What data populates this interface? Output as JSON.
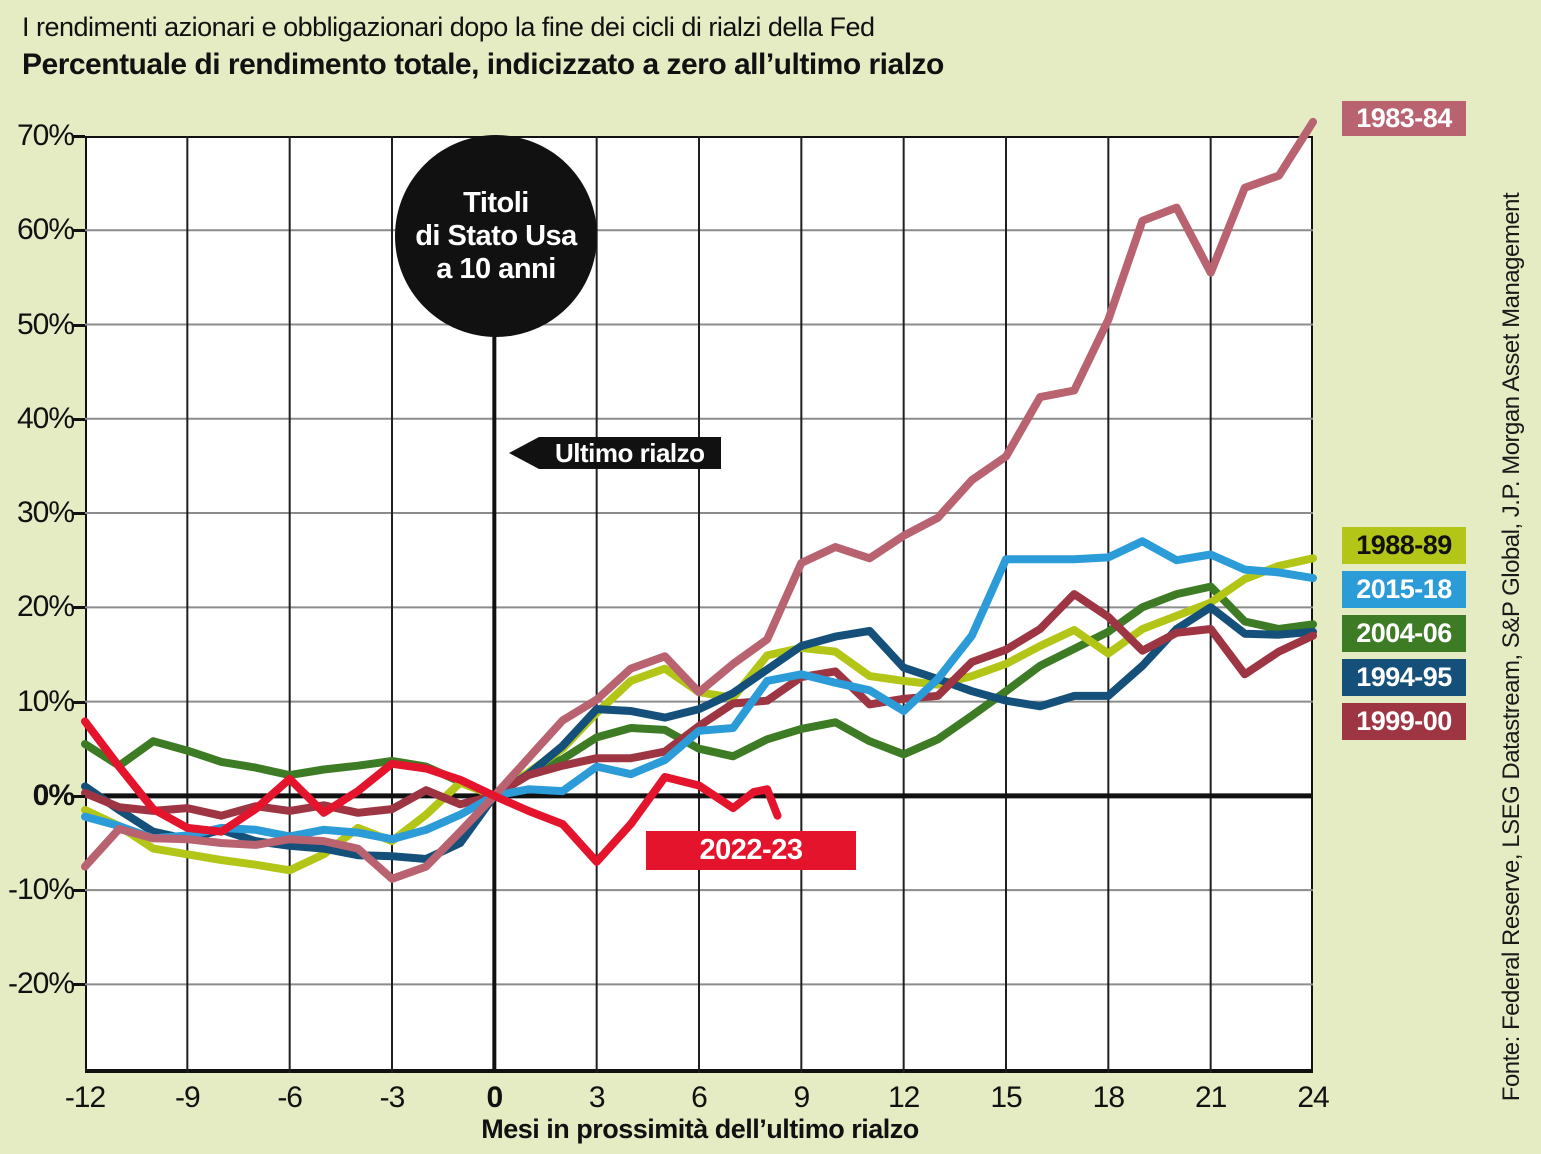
{
  "kicker": "I rendimenti azionari e obbligazionari dopo la fine dei cicli di rialzi della Fed",
  "title": "Percentuale di rendimento totale, indicizzato a zero all’ultimo rialzo",
  "source": "Fonte: Federal Reserve, LSEG Datastream, S&P Global, J.P. Morgan Asset Management",
  "colors": {
    "background": "#e5ecc4",
    "plot_background": "#ffffff",
    "grid_horizontal": "#8c8c8c",
    "grid_vertical": "#1f1f1f",
    "axis_black": "#111111"
  },
  "annotations": {
    "circle_lines": [
      "Titoli",
      "di Stato Usa",
      "a 10 anni"
    ],
    "last_hike_label": "Ultimo rialzo",
    "inline_series_label": "2022-23",
    "inline_series_color": "#e5142d"
  },
  "axes": {
    "xlabel": "Mesi in prossimità dell’ultimo rialzo",
    "x_ticks": [
      -12,
      -9,
      -6,
      -3,
      0,
      3,
      6,
      9,
      12,
      15,
      18,
      21,
      24
    ],
    "x_range": [
      -12,
      24
    ],
    "y_ticks": [
      70,
      60,
      50,
      40,
      30,
      20,
      10,
      0,
      -10,
      -20
    ],
    "y_tick_suffix": "%",
    "y_range": [
      -29.4,
      70
    ],
    "grid": true
  },
  "legend": {
    "top_item": {
      "label": "1983-84",
      "color": "#b96270",
      "text_color": "#ffffff"
    },
    "stack": [
      {
        "label": "1988-89",
        "color": "#b3c618",
        "text_color": "#111111"
      },
      {
        "label": "2015-18",
        "color": "#2b9cd8",
        "text_color": "#ffffff"
      },
      {
        "label": "2004-06",
        "color": "#3d7b25",
        "text_color": "#ffffff"
      },
      {
        "label": "1994-95",
        "color": "#14507a",
        "text_color": "#ffffff"
      },
      {
        "label": "1999-00",
        "color": "#9e3543",
        "text_color": "#ffffff"
      }
    ]
  },
  "chart_data": {
    "type": "line",
    "title": "Percentuale di rendimento totale, indicizzato a zero all’ultimo rialzo",
    "xlabel": "Mesi in prossimità dell’ultimo rialzo",
    "ylabel": "%",
    "xlim": [
      -12,
      24
    ],
    "ylim": [
      -29.4,
      70
    ],
    "grid": true,
    "legend_position": "right",
    "series": [
      {
        "name": "2004-06",
        "color": "#3d7b25",
        "points": [
          [
            -12,
            5.5
          ],
          [
            -11,
            3.2
          ],
          [
            -10,
            5.8
          ],
          [
            -9,
            4.8
          ],
          [
            -8,
            3.6
          ],
          [
            -7,
            3.0
          ],
          [
            -6,
            2.2
          ],
          [
            -5,
            2.8
          ],
          [
            -4,
            3.2
          ],
          [
            -3,
            3.7
          ],
          [
            -2,
            3.1
          ],
          [
            -1,
            1.5
          ],
          [
            0,
            0
          ],
          [
            1,
            2.3
          ],
          [
            2,
            3.9
          ],
          [
            3,
            6.2
          ],
          [
            4,
            7.2
          ],
          [
            5,
            7.0
          ],
          [
            6,
            5.0
          ],
          [
            7,
            4.2
          ],
          [
            8,
            6.0
          ],
          [
            9,
            7.1
          ],
          [
            10,
            7.8
          ],
          [
            11,
            5.8
          ],
          [
            12,
            4.4
          ],
          [
            13,
            6.0
          ],
          [
            14,
            8.5
          ],
          [
            15,
            11.1
          ],
          [
            16,
            13.8
          ],
          [
            17,
            15.6
          ],
          [
            18,
            17.4
          ],
          [
            19,
            20.0
          ],
          [
            20,
            21.4
          ],
          [
            21,
            22.2
          ],
          [
            22,
            18.5
          ],
          [
            23,
            17.7
          ],
          [
            24,
            18.2
          ]
        ]
      },
      {
        "name": "1988-89",
        "color": "#b3c618",
        "points": [
          [
            -12,
            -1.5
          ],
          [
            -11,
            -3.2
          ],
          [
            -10,
            -5.6
          ],
          [
            -9,
            -6.2
          ],
          [
            -8,
            -6.8
          ],
          [
            -7,
            -7.3
          ],
          [
            -6,
            -7.9
          ],
          [
            -5,
            -6.2
          ],
          [
            -4,
            -3.4
          ],
          [
            -3,
            -4.8
          ],
          [
            -2,
            -2.0
          ],
          [
            -1,
            1.4
          ],
          [
            0,
            0
          ],
          [
            1,
            2.5
          ],
          [
            2,
            5.0
          ],
          [
            3,
            8.8
          ],
          [
            4,
            12.2
          ],
          [
            5,
            13.5
          ],
          [
            6,
            11.0
          ],
          [
            7,
            10.4
          ],
          [
            8,
            14.9
          ],
          [
            9,
            15.7
          ],
          [
            10,
            15.3
          ],
          [
            11,
            12.7
          ],
          [
            12,
            12.2
          ],
          [
            13,
            11.8
          ],
          [
            14,
            12.7
          ],
          [
            15,
            14.0
          ],
          [
            16,
            15.9
          ],
          [
            17,
            17.6
          ],
          [
            18,
            15.1
          ],
          [
            19,
            17.7
          ],
          [
            20,
            19.1
          ],
          [
            21,
            20.5
          ],
          [
            22,
            23.0
          ],
          [
            23,
            24.4
          ],
          [
            24,
            25.2
          ]
        ]
      },
      {
        "name": "1994-95",
        "color": "#14507a",
        "points": [
          [
            -12,
            1.0
          ],
          [
            -11,
            -1.5
          ],
          [
            -10,
            -3.8
          ],
          [
            -9,
            -4.6
          ],
          [
            -8,
            -3.6
          ],
          [
            -7,
            -4.8
          ],
          [
            -6,
            -5.3
          ],
          [
            -5,
            -5.6
          ],
          [
            -4,
            -6.3
          ],
          [
            -3,
            -6.4
          ],
          [
            -2,
            -6.7
          ],
          [
            -1,
            -5.0
          ],
          [
            0,
            0
          ],
          [
            1,
            2.3
          ],
          [
            2,
            5.3
          ],
          [
            3,
            9.2
          ],
          [
            4,
            9.0
          ],
          [
            5,
            8.3
          ],
          [
            6,
            9.2
          ],
          [
            7,
            10.9
          ],
          [
            8,
            13.4
          ],
          [
            9,
            15.9
          ],
          [
            10,
            16.9
          ],
          [
            11,
            17.5
          ],
          [
            12,
            13.6
          ],
          [
            13,
            12.4
          ],
          [
            14,
            11.1
          ],
          [
            15,
            10.1
          ],
          [
            16,
            9.5
          ],
          [
            17,
            10.6
          ],
          [
            18,
            10.6
          ],
          [
            19,
            13.8
          ],
          [
            20,
            17.7
          ],
          [
            21,
            20.0
          ],
          [
            22,
            17.2
          ],
          [
            23,
            17.1
          ],
          [
            24,
            17.4
          ]
        ]
      },
      {
        "name": "1999-00",
        "color": "#9e3543",
        "points": [
          [
            -12,
            0.3
          ],
          [
            -11,
            -1.2
          ],
          [
            -10,
            -1.6
          ],
          [
            -9,
            -1.3
          ],
          [
            -8,
            -2.1
          ],
          [
            -7,
            -1.1
          ],
          [
            -6,
            -1.6
          ],
          [
            -5,
            -1.0
          ],
          [
            -4,
            -1.8
          ],
          [
            -3,
            -1.4
          ],
          [
            -2,
            0.6
          ],
          [
            -1,
            -0.9
          ],
          [
            0,
            0
          ],
          [
            1,
            2.2
          ],
          [
            2,
            3.2
          ],
          [
            3,
            4.0
          ],
          [
            4,
            4.0
          ],
          [
            5,
            4.7
          ],
          [
            6,
            7.4
          ],
          [
            7,
            9.8
          ],
          [
            8,
            10.1
          ],
          [
            9,
            12.6
          ],
          [
            10,
            13.2
          ],
          [
            11,
            9.7
          ],
          [
            12,
            10.3
          ],
          [
            13,
            10.6
          ],
          [
            14,
            14.2
          ],
          [
            15,
            15.5
          ],
          [
            16,
            17.7
          ],
          [
            17,
            21.4
          ],
          [
            18,
            19.0
          ],
          [
            19,
            15.4
          ],
          [
            20,
            17.3
          ],
          [
            21,
            17.7
          ],
          [
            22,
            12.9
          ],
          [
            23,
            15.3
          ],
          [
            24,
            17.0
          ]
        ]
      },
      {
        "name": "2015-18",
        "color": "#2b9cd8",
        "points": [
          [
            -12,
            -2.2
          ],
          [
            -11,
            -3.2
          ],
          [
            -10,
            -4.5
          ],
          [
            -9,
            -4.2
          ],
          [
            -8,
            -3.4
          ],
          [
            -7,
            -3.6
          ],
          [
            -6,
            -4.3
          ],
          [
            -5,
            -3.6
          ],
          [
            -4,
            -3.9
          ],
          [
            -3,
            -4.6
          ],
          [
            -2,
            -3.6
          ],
          [
            -1,
            -2.0
          ],
          [
            0,
            0
          ],
          [
            1,
            0.7
          ],
          [
            2,
            0.5
          ],
          [
            3,
            3.1
          ],
          [
            4,
            2.3
          ],
          [
            5,
            3.8
          ],
          [
            6,
            6.9
          ],
          [
            7,
            7.2
          ],
          [
            8,
            12.2
          ],
          [
            9,
            12.9
          ],
          [
            10,
            12.0
          ],
          [
            11,
            11.2
          ],
          [
            12,
            9.0
          ],
          [
            13,
            12.4
          ],
          [
            14,
            17.0
          ],
          [
            15,
            25.1
          ],
          [
            16,
            25.1
          ],
          [
            17,
            25.1
          ],
          [
            18,
            25.3
          ],
          [
            19,
            27.0
          ],
          [
            20,
            25.0
          ],
          [
            21,
            25.6
          ],
          [
            22,
            24.0
          ],
          [
            23,
            23.7
          ],
          [
            24,
            23.1
          ]
        ]
      },
      {
        "name": "1983-84",
        "color": "#b96270",
        "points": [
          [
            -12,
            -7.5
          ],
          [
            -11,
            -3.5
          ],
          [
            -10,
            -4.5
          ],
          [
            -9,
            -4.6
          ],
          [
            -8,
            -5.0
          ],
          [
            -7,
            -5.2
          ],
          [
            -6,
            -4.6
          ],
          [
            -5,
            -4.8
          ],
          [
            -4,
            -5.6
          ],
          [
            -3,
            -8.8
          ],
          [
            -2,
            -7.5
          ],
          [
            -1,
            -3.8
          ],
          [
            0,
            0
          ],
          [
            1,
            4.0
          ],
          [
            2,
            8.0
          ],
          [
            3,
            10.2
          ],
          [
            4,
            13.5
          ],
          [
            5,
            14.8
          ],
          [
            6,
            11.0
          ],
          [
            7,
            14.0
          ],
          [
            8,
            16.6
          ],
          [
            9,
            24.7
          ],
          [
            10,
            26.4
          ],
          [
            11,
            25.2
          ],
          [
            12,
            27.6
          ],
          [
            13,
            29.5
          ],
          [
            14,
            33.5
          ],
          [
            15,
            36.0
          ],
          [
            16,
            42.3
          ],
          [
            17,
            43.0
          ],
          [
            18,
            50.5
          ],
          [
            19,
            61.0
          ],
          [
            20,
            62.4
          ],
          [
            21,
            55.5
          ],
          [
            22,
            64.5
          ],
          [
            23,
            65.8
          ],
          [
            24,
            71.5
          ]
        ]
      },
      {
        "name": "2022-23",
        "color": "#e5142d",
        "points": [
          [
            -12,
            7.9
          ],
          [
            -11,
            3.1
          ],
          [
            -10,
            -1.4
          ],
          [
            -9,
            -3.4
          ],
          [
            -8,
            -3.8
          ],
          [
            -7,
            -1.4
          ],
          [
            -6,
            1.8
          ],
          [
            -5,
            -1.8
          ],
          [
            -4,
            0.5
          ],
          [
            -3,
            3.4
          ],
          [
            -2,
            2.9
          ],
          [
            -1,
            1.7
          ],
          [
            0,
            0
          ],
          [
            1,
            -1.6
          ],
          [
            2,
            -3.0
          ],
          [
            3,
            -7.0
          ],
          [
            4,
            -3.0
          ],
          [
            5,
            2.0
          ],
          [
            6,
            1.1
          ],
          [
            7,
            -1.3
          ],
          [
            7.6,
            0.4
          ],
          [
            8,
            0.7
          ],
          [
            8.3,
            -2.1
          ]
        ]
      }
    ]
  }
}
